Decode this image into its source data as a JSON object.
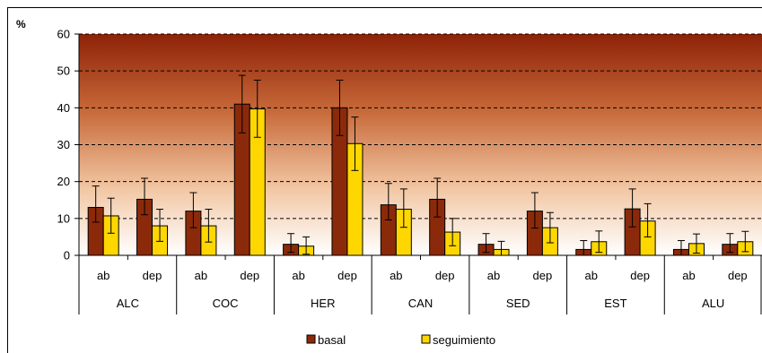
{
  "chart_data": {
    "type": "bar",
    "ylabel": "%",
    "ylim": [
      0,
      60
    ],
    "yticks": [
      0,
      10,
      20,
      30,
      40,
      50,
      60
    ],
    "grid": true,
    "legend_position": "bottom",
    "groups": [
      {
        "label": "ALC",
        "sub": [
          "ab",
          "dep"
        ]
      },
      {
        "label": "COC",
        "sub": [
          "ab",
          "dep"
        ]
      },
      {
        "label": "HER",
        "sub": [
          "ab",
          "dep"
        ]
      },
      {
        "label": "CAN",
        "sub": [
          "ab",
          "dep"
        ]
      },
      {
        "label": "SED",
        "sub": [
          "ab",
          "dep"
        ]
      },
      {
        "label": "EST",
        "sub": [
          "ab",
          "dep"
        ]
      },
      {
        "label": "ALU",
        "sub": [
          "ab",
          "dep"
        ]
      }
    ],
    "series": [
      {
        "name": "basal",
        "color": "#8B2A0A",
        "values": [
          13,
          15.2,
          12,
          41,
          3,
          40,
          13.7,
          15.2,
          3,
          12,
          1.6,
          12.6,
          1.6,
          3
        ],
        "err_low": [
          9,
          11,
          7.5,
          33.2,
          0.8,
          32.5,
          9.6,
          10.4,
          0.8,
          7.4,
          0,
          7.7,
          0,
          0.8
        ],
        "err_high": [
          18.8,
          20.9,
          17,
          48.8,
          5.9,
          47.5,
          19.5,
          20.9,
          5.9,
          17,
          4,
          18,
          4,
          5.9
        ]
      },
      {
        "name": "seguimiento",
        "color": "#FFD700",
        "values": [
          10.7,
          8,
          8,
          39.7,
          2.5,
          30.3,
          12.5,
          6.3,
          1.6,
          7.5,
          3.7,
          9.3,
          3.2,
          3.7
        ],
        "err_low": [
          6,
          3.8,
          3.6,
          32,
          0.3,
          23,
          7.6,
          2.6,
          0,
          3.4,
          0.8,
          5,
          0.6,
          1
        ],
        "err_high": [
          15.5,
          12.5,
          12.5,
          47.5,
          5,
          37.5,
          18,
          10,
          3.8,
          11.6,
          6.6,
          14,
          5.8,
          6.5
        ]
      }
    ]
  }
}
